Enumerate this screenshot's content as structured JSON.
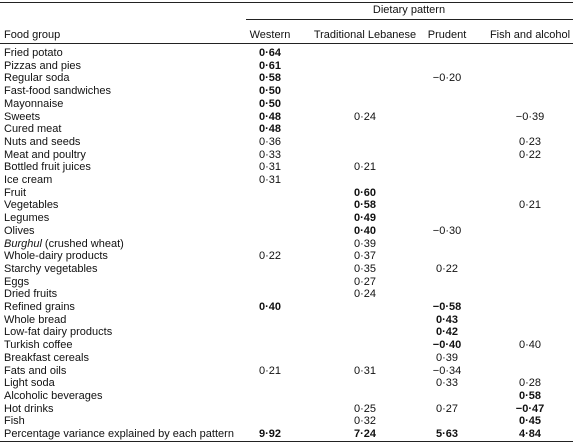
{
  "table": {
    "group_header": "Dietary pattern",
    "columns": [
      "Food group",
      "Western",
      "Traditional Lebanese",
      "Prudent",
      "Fish and alcohol"
    ],
    "rows": [
      {
        "label": "Fried potato",
        "cells": [
          "0·64",
          null,
          null,
          null
        ],
        "bold": [
          true,
          false,
          false,
          false
        ]
      },
      {
        "label": "Pizzas and pies",
        "cells": [
          "0·61",
          null,
          null,
          null
        ],
        "bold": [
          true,
          false,
          false,
          false
        ]
      },
      {
        "label": "Regular soda",
        "cells": [
          "0·58",
          null,
          "−0·20",
          null
        ],
        "bold": [
          true,
          false,
          false,
          false
        ]
      },
      {
        "label": "Fast-food sandwiches",
        "cells": [
          "0·50",
          null,
          null,
          null
        ],
        "bold": [
          true,
          false,
          false,
          false
        ]
      },
      {
        "label": "Mayonnaise",
        "cells": [
          "0·50",
          null,
          null,
          null
        ],
        "bold": [
          true,
          false,
          false,
          false
        ]
      },
      {
        "label": "Sweets",
        "cells": [
          "0·48",
          "0·24",
          null,
          "−0·39"
        ],
        "bold": [
          true,
          false,
          false,
          false
        ]
      },
      {
        "label": "Cured meat",
        "cells": [
          "0·48",
          null,
          null,
          null
        ],
        "bold": [
          true,
          false,
          false,
          false
        ]
      },
      {
        "label": "Nuts and seeds",
        "cells": [
          "0·36",
          null,
          null,
          "0·23"
        ],
        "bold": [
          false,
          false,
          false,
          false
        ]
      },
      {
        "label": "Meat and poultry",
        "cells": [
          "0·33",
          null,
          null,
          "0·22"
        ],
        "bold": [
          false,
          false,
          false,
          false
        ]
      },
      {
        "label": "Bottled fruit juices",
        "cells": [
          "0·31",
          "0·21",
          null,
          null
        ],
        "bold": [
          false,
          false,
          false,
          false
        ]
      },
      {
        "label": "Ice cream",
        "cells": [
          "0·31",
          null,
          null,
          null
        ],
        "bold": [
          false,
          false,
          false,
          false
        ]
      },
      {
        "label": "Fruit",
        "cells": [
          null,
          "0·60",
          null,
          null
        ],
        "bold": [
          false,
          true,
          false,
          false
        ]
      },
      {
        "label": "Vegetables",
        "cells": [
          null,
          "0·58",
          null,
          "0·21"
        ],
        "bold": [
          false,
          true,
          false,
          false
        ]
      },
      {
        "label": "Legumes",
        "cells": [
          null,
          "0·49",
          null,
          null
        ],
        "bold": [
          false,
          true,
          false,
          false
        ]
      },
      {
        "label": "Olives",
        "cells": [
          null,
          "0·40",
          "−0·30",
          null
        ],
        "bold": [
          false,
          true,
          false,
          false
        ]
      },
      {
        "label_italic": "Burghul",
        "label": "(crushed wheat)",
        "cells": [
          null,
          "0·39",
          null,
          null
        ],
        "bold": [
          false,
          false,
          false,
          false
        ]
      },
      {
        "label": "Whole-dairy products",
        "cells": [
          "0·22",
          "0·37",
          null,
          null
        ],
        "bold": [
          false,
          false,
          false,
          false
        ]
      },
      {
        "label": "Starchy vegetables",
        "cells": [
          null,
          "0·35",
          "0·22",
          null
        ],
        "bold": [
          false,
          false,
          false,
          false
        ]
      },
      {
        "label": "Eggs",
        "cells": [
          null,
          "0·27",
          null,
          null
        ],
        "bold": [
          false,
          false,
          false,
          false
        ]
      },
      {
        "label": "Dried fruits",
        "cells": [
          null,
          "0·24",
          null,
          null
        ],
        "bold": [
          false,
          false,
          false,
          false
        ]
      },
      {
        "label": "Refined grains",
        "cells": [
          "0·40",
          null,
          "−0·58",
          null
        ],
        "bold": [
          true,
          false,
          true,
          false
        ]
      },
      {
        "label": "Whole bread",
        "cells": [
          null,
          null,
          "0·43",
          null
        ],
        "bold": [
          false,
          false,
          true,
          false
        ]
      },
      {
        "label": "Low-fat dairy products",
        "cells": [
          null,
          null,
          "0·42",
          null
        ],
        "bold": [
          false,
          false,
          true,
          false
        ]
      },
      {
        "label": "Turkish coffee",
        "cells": [
          null,
          null,
          "−0·40",
          "0·40"
        ],
        "bold": [
          false,
          false,
          true,
          false
        ]
      },
      {
        "label": "Breakfast cereals",
        "cells": [
          null,
          null,
          "0·39",
          null
        ],
        "bold": [
          false,
          false,
          false,
          false
        ]
      },
      {
        "label": "Fats and oils",
        "cells": [
          "0·21",
          "0·31",
          "−0·34",
          null
        ],
        "bold": [
          false,
          false,
          false,
          false
        ]
      },
      {
        "label": "Light soda",
        "cells": [
          null,
          null,
          "0·33",
          "0·28"
        ],
        "bold": [
          false,
          false,
          false,
          false
        ]
      },
      {
        "label": "Alcoholic beverages",
        "cells": [
          null,
          null,
          null,
          "0·58"
        ],
        "bold": [
          false,
          false,
          false,
          true
        ]
      },
      {
        "label": "Hot drinks",
        "cells": [
          null,
          "0·25",
          "0·27",
          "−0·47"
        ],
        "bold": [
          false,
          false,
          false,
          true
        ]
      },
      {
        "label": "Fish",
        "cells": [
          null,
          "0·32",
          null,
          "0·45"
        ],
        "bold": [
          false,
          false,
          false,
          true
        ]
      },
      {
        "label": "Percentage variance explained by each pattern",
        "cells": [
          "9·92",
          "7·24",
          "5·63",
          "4·84"
        ],
        "bold": [
          true,
          true,
          true,
          true
        ]
      }
    ]
  }
}
